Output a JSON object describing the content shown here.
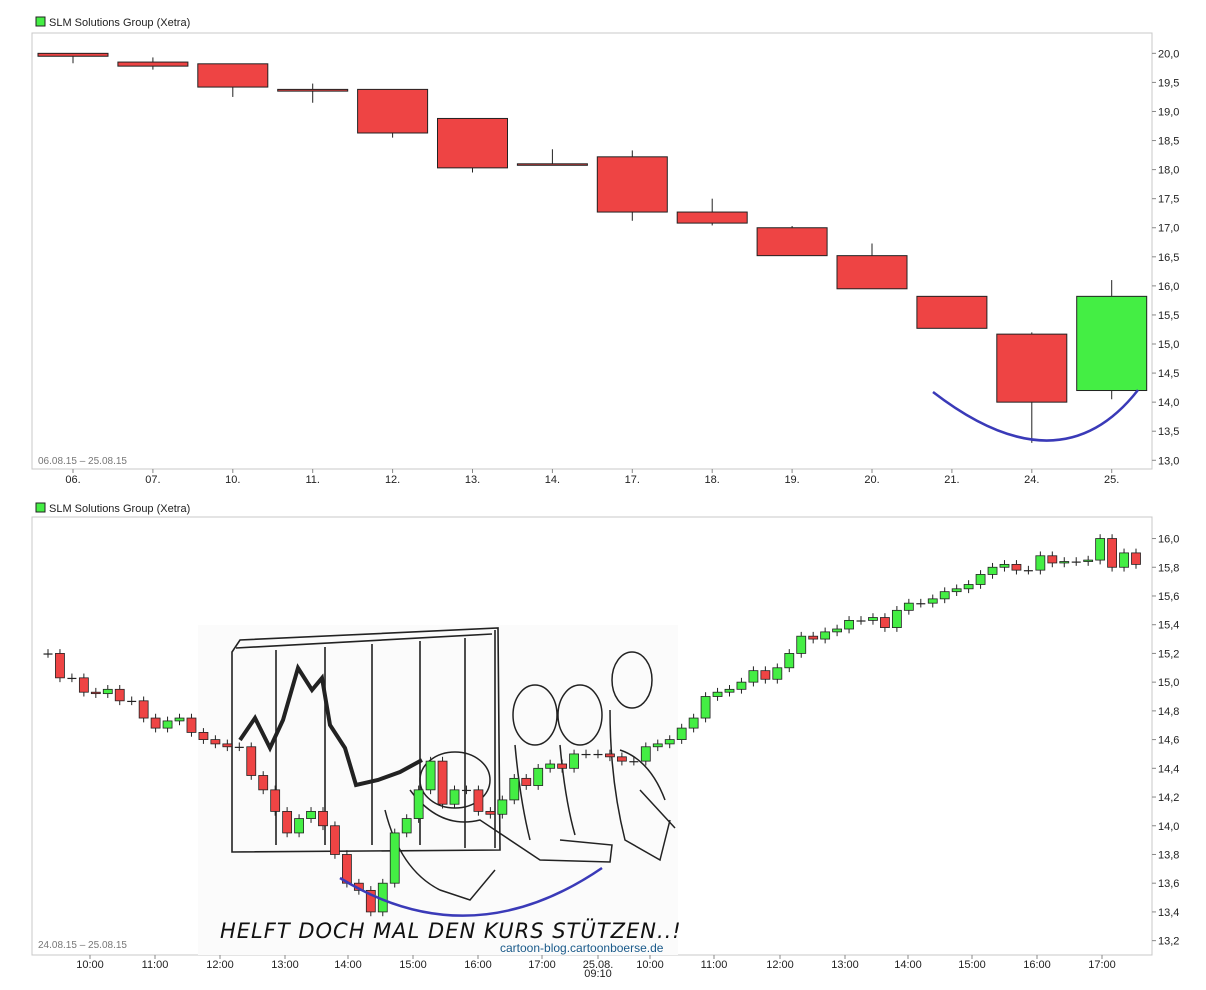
{
  "chart_data": [
    {
      "type": "candlestick",
      "title": "SLM Solutions Group (Xetra)",
      "date_range": "06.08.15 – 25.08.15",
      "ylim": [
        12.85,
        20.35
      ],
      "y_ticks": [
        "13,0",
        "13,5",
        "14,0",
        "14,5",
        "15,0",
        "15,5",
        "16,0",
        "16,5",
        "17,0",
        "17,5",
        "18,0",
        "18,5",
        "19,0",
        "19,5",
        "20,0"
      ],
      "categories": [
        "06.",
        "07.",
        "10.",
        "11.",
        "12.",
        "13.",
        "14.",
        "17.",
        "18.",
        "19.",
        "20.",
        "21.",
        "24.",
        "25."
      ],
      "candles": [
        {
          "open": 20.0,
          "close": 19.95,
          "high": 20.0,
          "low": 19.83
        },
        {
          "open": 19.85,
          "close": 19.78,
          "high": 19.93,
          "low": 19.72
        },
        {
          "open": 19.82,
          "close": 19.42,
          "high": 19.82,
          "low": 19.25
        },
        {
          "open": 19.38,
          "close": 19.35,
          "high": 19.48,
          "low": 19.15
        },
        {
          "open": 19.38,
          "close": 18.63,
          "high": 19.38,
          "low": 18.55
        },
        {
          "open": 18.88,
          "close": 18.03,
          "high": 18.88,
          "low": 17.95
        },
        {
          "open": 18.1,
          "close": 18.08,
          "high": 18.35,
          "low": 18.08
        },
        {
          "open": 18.22,
          "close": 17.27,
          "high": 18.33,
          "low": 17.12
        },
        {
          "open": 17.27,
          "close": 17.08,
          "high": 17.5,
          "low": 17.04
        },
        {
          "open": 17.0,
          "close": 16.52,
          "high": 17.03,
          "low": 16.52
        },
        {
          "open": 16.52,
          "close": 15.95,
          "high": 16.73,
          "low": 15.95
        },
        {
          "open": 15.82,
          "close": 15.27,
          "high": 15.82,
          "low": 15.27
        },
        {
          "open": 15.17,
          "close": 14.0,
          "high": 15.2,
          "low": 13.3
        },
        {
          "open": 14.2,
          "close": 15.82,
          "high": 16.1,
          "low": 14.05
        }
      ],
      "colors": {
        "up": "#44ee44",
        "down": "#ee4444",
        "curve": "#3a3ab8"
      }
    },
    {
      "type": "candlestick",
      "title": "SLM Solutions Group (Xetra)",
      "date_range": "24.08.15 – 25.08.15",
      "ylim": [
        13.1,
        16.15
      ],
      "y_ticks": [
        "13,2",
        "13,4",
        "13,6",
        "13,8",
        "14,0",
        "14,2",
        "14,4",
        "14,6",
        "14,8",
        "15,0",
        "15,2",
        "15,4",
        "15,6",
        "15,8",
        "16,0"
      ],
      "x_labels": [
        "10:00",
        "11:00",
        "12:00",
        "13:00",
        "14:00",
        "15:00",
        "16:00",
        "17:00",
        "25.08.",
        "10:00",
        "11:00",
        "12:00",
        "13:00",
        "14:00",
        "15:00",
        "16:00",
        "17:00"
      ],
      "x_sublabel": "09:10",
      "closes": [
        15.2,
        15.03,
        15.03,
        14.93,
        14.92,
        14.95,
        14.87,
        14.87,
        14.75,
        14.68,
        14.73,
        14.75,
        14.65,
        14.6,
        14.57,
        14.55,
        14.55,
        14.35,
        14.25,
        14.1,
        13.95,
        14.05,
        14.1,
        14.0,
        13.8,
        13.6,
        13.55,
        13.4,
        13.6,
        13.95,
        14.05,
        14.25,
        14.45,
        14.15,
        14.25,
        14.25,
        14.1,
        14.08,
        14.18,
        14.33,
        14.28,
        14.4,
        14.43,
        14.4,
        14.5,
        14.5,
        14.5,
        14.48,
        14.45,
        14.45,
        14.55,
        14.57,
        14.6,
        14.68,
        14.75,
        14.9,
        14.93,
        14.95,
        15.0,
        15.08,
        15.02,
        15.1,
        15.2,
        15.32,
        15.3,
        15.35,
        15.37,
        15.43,
        15.43,
        15.45,
        15.38,
        15.5,
        15.55,
        15.55,
        15.58,
        15.63,
        15.65,
        15.68,
        15.75,
        15.8,
        15.82,
        15.78,
        15.78,
        15.88,
        15.83,
        15.84,
        15.84,
        15.85,
        16.0,
        15.8,
        15.9,
        15.82
      ],
      "colors": {
        "up": "#44ee44",
        "down": "#ee4444",
        "curve": "#3a3ab8"
      }
    }
  ],
  "cartoon": {
    "caption": "HELFT DOCH MAL DEN KURS STÜTZEN..!",
    "credit": "cartoon-blog.cartoonboerse.de"
  }
}
